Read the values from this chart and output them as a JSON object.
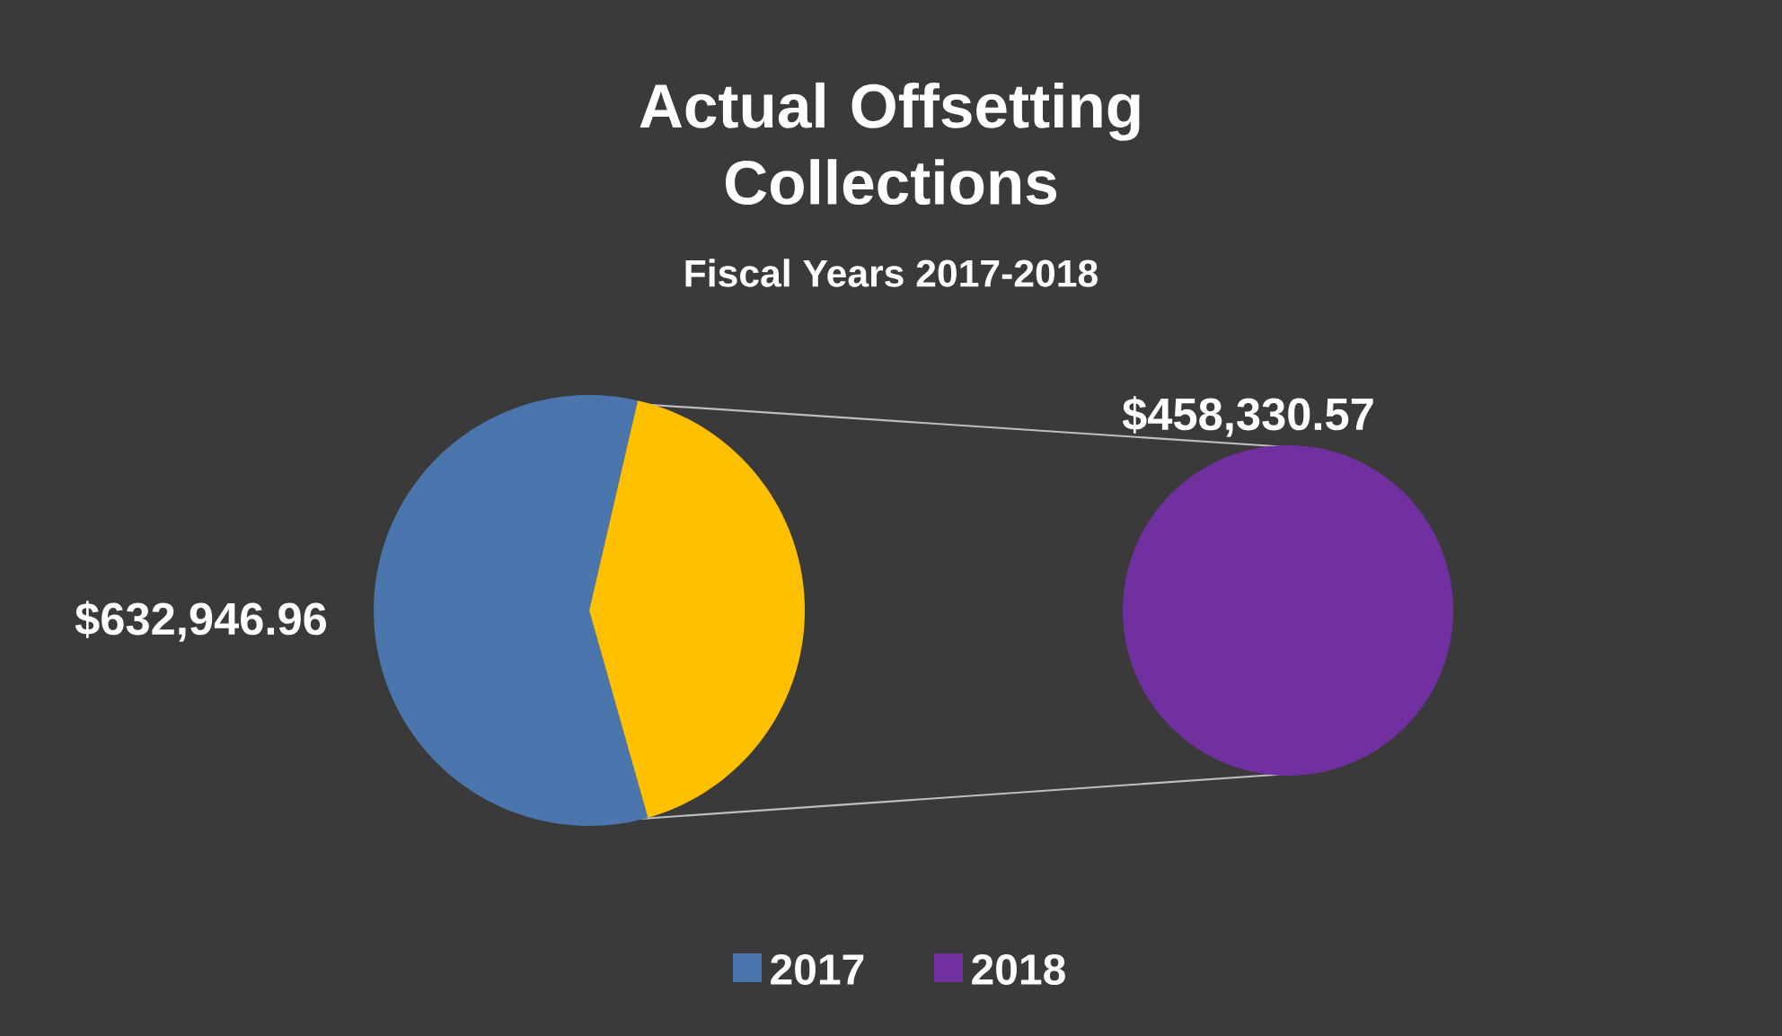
{
  "chart_data": [
    {
      "type": "pie",
      "title": "Actual Offsetting Collections",
      "subtitle": "Fiscal Years 2017-2018",
      "categories": [
        "2017",
        null
      ],
      "values": [
        632946.96,
        458330.57
      ],
      "colors": [
        "#4a76ad",
        "#ffc000"
      ],
      "value_labels": [
        "$632,946.96",
        null
      ],
      "legend": "bottom"
    },
    {
      "type": "pie",
      "categories": [
        "2018"
      ],
      "values": [
        458330.57
      ],
      "colors": [
        "#7030a0"
      ],
      "value_labels": [
        "$458,330.57"
      ],
      "legend": "bottom"
    }
  ]
}
